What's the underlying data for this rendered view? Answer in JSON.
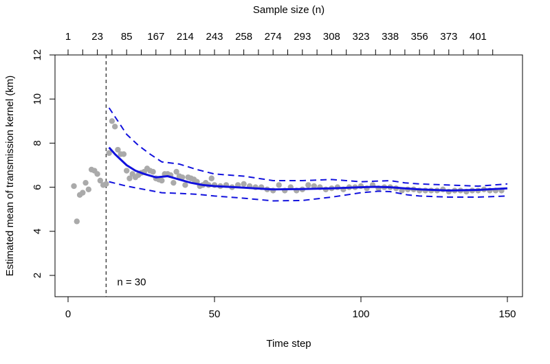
{
  "chart_data": {
    "type": "scatter",
    "title": "",
    "xlabel": "Time step",
    "ylabel": "Estimated mean of transmission kernel (km)",
    "top_axis_label": "Sample size (n)",
    "xlim": [
      0,
      150
    ],
    "ylim": [
      2,
      12
    ],
    "x_ticks": [
      0,
      50,
      100,
      150
    ],
    "y_ticks": [
      2,
      4,
      6,
      8,
      10,
      12
    ],
    "top_ticks": [
      {
        "x": 0,
        "label": "1"
      },
      {
        "x": 5,
        "label": ""
      },
      {
        "x": 10,
        "label": "23"
      },
      {
        "x": 15,
        "label": ""
      },
      {
        "x": 20,
        "label": "85"
      },
      {
        "x": 25,
        "label": ""
      },
      {
        "x": 30,
        "label": "167"
      },
      {
        "x": 35,
        "label": ""
      },
      {
        "x": 40,
        "label": "214"
      },
      {
        "x": 45,
        "label": ""
      },
      {
        "x": 50,
        "label": "243"
      },
      {
        "x": 55,
        "label": ""
      },
      {
        "x": 60,
        "label": "258"
      },
      {
        "x": 65,
        "label": ""
      },
      {
        "x": 70,
        "label": "274"
      },
      {
        "x": 75,
        "label": ""
      },
      {
        "x": 80,
        "label": "293"
      },
      {
        "x": 85,
        "label": ""
      },
      {
        "x": 90,
        "label": "308"
      },
      {
        "x": 95,
        "label": ""
      },
      {
        "x": 100,
        "label": "323"
      },
      {
        "x": 105,
        "label": ""
      },
      {
        "x": 110,
        "label": "338"
      },
      {
        "x": 115,
        "label": ""
      },
      {
        "x": 120,
        "label": "356"
      },
      {
        "x": 125,
        "label": ""
      },
      {
        "x": 130,
        "label": "373"
      },
      {
        "x": 135,
        "label": ""
      },
      {
        "x": 140,
        "label": "401"
      },
      {
        "x": 145,
        "label": ""
      }
    ],
    "vline": {
      "x": 13,
      "label": "n = 30",
      "label_y": 1.7
    },
    "points": {
      "color": "#aaaaaa",
      "x": [
        2,
        3,
        4,
        5,
        6,
        7,
        8,
        9,
        10,
        11,
        12,
        13,
        14,
        15,
        16,
        17,
        18,
        19,
        20,
        21,
        22,
        23,
        24,
        25,
        26,
        27,
        28,
        29,
        30,
        31,
        32,
        33,
        34,
        35,
        36,
        37,
        38,
        39,
        40,
        41,
        42,
        43,
        44,
        45,
        46,
        47,
        48,
        49,
        50,
        52,
        54,
        56,
        58,
        60,
        62,
        64,
        66,
        68,
        70,
        72,
        74,
        76,
        78,
        80,
        82,
        84,
        86,
        88,
        90,
        92,
        94,
        96,
        98,
        100,
        102,
        104,
        106,
        108,
        110,
        112,
        114,
        116,
        118,
        120,
        122,
        124,
        126,
        128,
        130,
        132,
        134,
        136,
        138,
        140,
        142,
        144,
        146,
        148
      ],
      "y": [
        6.05,
        4.45,
        5.65,
        5.75,
        6.2,
        5.9,
        6.8,
        6.75,
        6.6,
        6.3,
        6.1,
        6.15,
        7.55,
        9.0,
        8.75,
        7.7,
        7.5,
        7.5,
        6.75,
        6.4,
        6.6,
        6.45,
        6.55,
        6.65,
        6.7,
        6.85,
        6.75,
        6.7,
        6.4,
        6.35,
        6.3,
        6.6,
        6.6,
        6.55,
        6.2,
        6.7,
        6.5,
        6.45,
        6.1,
        6.45,
        6.4,
        6.35,
        6.25,
        6.05,
        6.1,
        6.2,
        6.1,
        6.4,
        6.1,
        6.05,
        6.1,
        6.0,
        6.1,
        6.15,
        6.05,
        6.0,
        6.0,
        5.9,
        5.85,
        6.1,
        5.85,
        6.0,
        5.85,
        5.9,
        6.1,
        6.05,
        6.0,
        5.9,
        5.95,
        6.0,
        5.9,
        6.0,
        6.0,
        6.05,
        5.95,
        6.1,
        5.95,
        6.0,
        6.0,
        5.95,
        5.85,
        5.9,
        5.9,
        5.85,
        5.85,
        5.85,
        5.85,
        5.9,
        5.8,
        5.85,
        5.85,
        5.8,
        5.85,
        5.85,
        5.9,
        5.85,
        5.85,
        5.85
      ]
    },
    "series": [
      {
        "style": "solid",
        "color": "#1111dd",
        "x": [
          14,
          16,
          18,
          20,
          23,
          26,
          30,
          34,
          38,
          42,
          46,
          50,
          60,
          70,
          80,
          90,
          100,
          105,
          110,
          115,
          120,
          130,
          140,
          150
        ],
        "y": [
          7.8,
          7.5,
          7.25,
          7.0,
          6.75,
          6.6,
          6.45,
          6.5,
          6.35,
          6.2,
          6.1,
          6.05,
          5.98,
          5.9,
          5.92,
          5.95,
          6.0,
          6.02,
          6.0,
          5.95,
          5.9,
          5.85,
          5.88,
          5.95
        ]
      },
      {
        "style": "dashed",
        "color": "#1111dd",
        "x": [
          14,
          16,
          18,
          20,
          24,
          28,
          32,
          38,
          44,
          50,
          60,
          70,
          80,
          90,
          100,
          110,
          115,
          120,
          130,
          140,
          150
        ],
        "y": [
          9.6,
          9.2,
          8.8,
          8.4,
          7.9,
          7.5,
          7.15,
          7.05,
          6.8,
          6.6,
          6.5,
          6.3,
          6.3,
          6.35,
          6.25,
          6.3,
          6.2,
          6.15,
          6.1,
          6.05,
          6.15
        ]
      },
      {
        "style": "dashed",
        "color": "#1111dd",
        "x": [
          14,
          17,
          20,
          24,
          28,
          32,
          38,
          44,
          50,
          60,
          70,
          80,
          90,
          100,
          106,
          110,
          116,
          120,
          130,
          140,
          150
        ],
        "y": [
          6.25,
          6.15,
          6.05,
          5.95,
          5.85,
          5.75,
          5.72,
          5.68,
          5.6,
          5.5,
          5.38,
          5.4,
          5.55,
          5.75,
          5.82,
          5.8,
          5.65,
          5.6,
          5.55,
          5.55,
          5.6
        ]
      }
    ]
  }
}
